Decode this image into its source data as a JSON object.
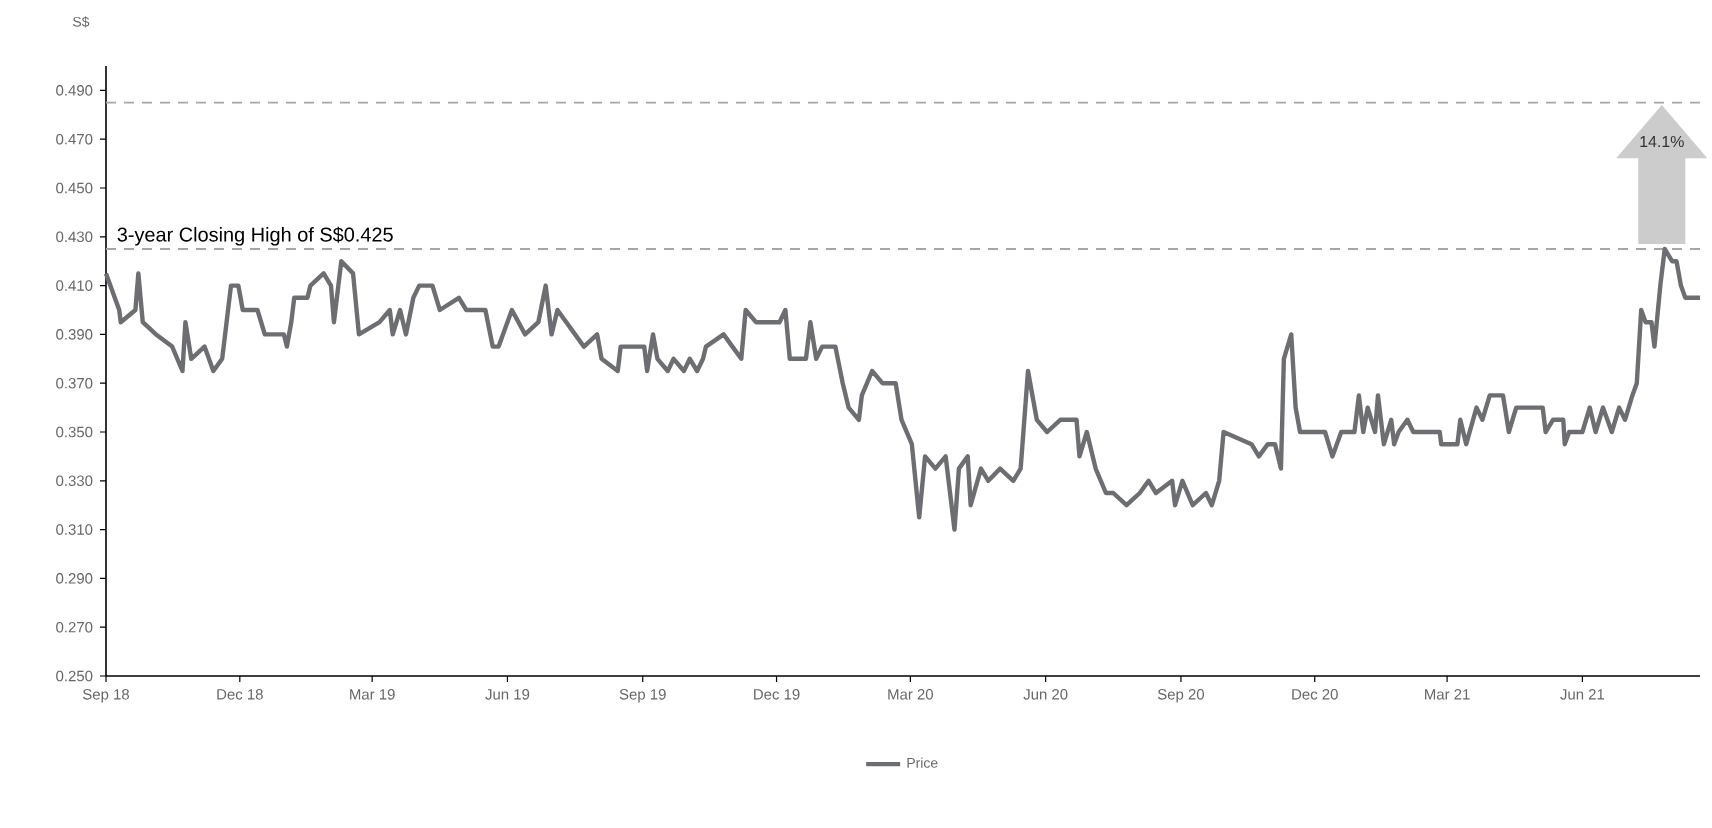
{
  "chart_data": {
    "type": "line",
    "ylabel": "S$",
    "legend": "bottom",
    "line_style": "solid",
    "xlim": [
      "2018-09-01",
      "2021-08-20"
    ],
    "xticks": [
      {
        "value": "2018-09-01",
        "label": "Sep 18"
      },
      {
        "value": "2018-12-01",
        "label": "Dec 18"
      },
      {
        "value": "2019-03-01",
        "label": "Mar 19"
      },
      {
        "value": "2019-06-01",
        "label": "Jun 19"
      },
      {
        "value": "2019-09-01",
        "label": "Sep 19"
      },
      {
        "value": "2019-12-01",
        "label": "Dec 19"
      },
      {
        "value": "2020-03-01",
        "label": "Mar 20"
      },
      {
        "value": "2020-06-01",
        "label": "Jun 20"
      },
      {
        "value": "2020-09-01",
        "label": "Sep 20"
      },
      {
        "value": "2020-12-01",
        "label": "Dec 20"
      },
      {
        "value": "2021-03-01",
        "label": "Mar 21"
      },
      {
        "value": "2021-06-01",
        "label": "Jun 21"
      }
    ],
    "ylim": [
      0.25,
      0.5
    ],
    "yticks": [
      {
        "value": 0.25,
        "label": "0.250"
      },
      {
        "value": 0.27,
        "label": "0.270"
      },
      {
        "value": 0.29,
        "label": "0.290"
      },
      {
        "value": 0.31,
        "label": "0.310"
      },
      {
        "value": 0.33,
        "label": "0.330"
      },
      {
        "value": 0.35,
        "label": "0.350"
      },
      {
        "value": 0.37,
        "label": "0.370"
      },
      {
        "value": 0.39,
        "label": "0.390"
      },
      {
        "value": 0.41,
        "label": "0.410"
      },
      {
        "value": 0.43,
        "label": "0.430"
      },
      {
        "value": 0.45,
        "label": "0.450"
      },
      {
        "value": 0.47,
        "label": "0.470"
      },
      {
        "value": 0.49,
        "label": "0.490"
      }
    ],
    "ref_lines": [
      {
        "axis": "y",
        "value": 0.425,
        "label": "3-year Closing High of S$0.425",
        "color": "#a6a6a6",
        "line_style": "dashed"
      },
      {
        "axis": "y",
        "value": 0.485,
        "color": "#a6a6a6",
        "line_style": "dashed"
      }
    ],
    "annotations": [
      "14.1%"
    ],
    "x": [
      "2018-09-01",
      "2018-09-10",
      "2018-09-11",
      "2018-09-21",
      "2018-09-23",
      "2018-09-26",
      "2018-10-05",
      "2018-10-16",
      "2018-10-23",
      "2018-10-25",
      "2018-10-29",
      "2018-11-07",
      "2018-11-13",
      "2018-11-19",
      "2018-11-21",
      "2018-11-25",
      "2018-11-30",
      "2018-12-03",
      "2018-12-13",
      "2018-12-18",
      "2018-12-31",
      "2019-01-02",
      "2019-01-05",
      "2019-01-07",
      "2019-01-16",
      "2019-01-18",
      "2019-01-27",
      "2019-02-01",
      "2019-02-03",
      "2019-02-08",
      "2019-02-16",
      "2019-02-20",
      "2019-03-06",
      "2019-03-13",
      "2019-03-15",
      "2019-03-20",
      "2019-03-24",
      "2019-03-29",
      "2019-04-02",
      "2019-04-11",
      "2019-04-16",
      "2019-04-29",
      "2019-05-04",
      "2019-05-17",
      "2019-05-22",
      "2019-05-26",
      "2019-06-04",
      "2019-06-13",
      "2019-06-22",
      "2019-06-27",
      "2019-07-01",
      "2019-07-05",
      "2019-07-23",
      "2019-08-01",
      "2019-08-04",
      "2019-08-15",
      "2019-08-17",
      "2019-09-02",
      "2019-09-04",
      "2019-09-08",
      "2019-09-11",
      "2019-09-18",
      "2019-09-22",
      "2019-09-29",
      "2019-10-03",
      "2019-10-08",
      "2019-10-12",
      "2019-10-14",
      "2019-10-26",
      "2019-11-01",
      "2019-11-07",
      "2019-11-10",
      "2019-11-17",
      "2019-12-03",
      "2019-12-07",
      "2019-12-10",
      "2019-12-21",
      "2019-12-24",
      "2019-12-28",
      "2020-01-01",
      "2020-01-10",
      "2020-01-15",
      "2020-01-19",
      "2020-01-26",
      "2020-01-28",
      "2020-02-04",
      "2020-02-11",
      "2020-02-20",
      "2020-02-24",
      "2020-03-02",
      "2020-03-07",
      "2020-03-11",
      "2020-03-18",
      "2020-03-25",
      "2020-03-31",
      "2020-04-03",
      "2020-04-09",
      "2020-04-11",
      "2020-04-18",
      "2020-04-23",
      "2020-05-01",
      "2020-05-10",
      "2020-05-15",
      "2020-05-20",
      "2020-05-26",
      "2020-06-02",
      "2020-06-11",
      "2020-06-22",
      "2020-06-24",
      "2020-06-29",
      "2020-07-05",
      "2020-07-12",
      "2020-07-17",
      "2020-07-26",
      "2020-08-04",
      "2020-08-10",
      "2020-08-15",
      "2020-08-26",
      "2020-08-28",
      "2020-09-02",
      "2020-09-09",
      "2020-09-18",
      "2020-09-22",
      "2020-09-27",
      "2020-09-30",
      "2020-10-19",
      "2020-10-24",
      "2020-10-30",
      "2020-11-04",
      "2020-11-08",
      "2020-11-10",
      "2020-11-15",
      "2020-11-18",
      "2020-11-21",
      "2020-12-08",
      "2020-12-13",
      "2020-12-19",
      "2020-12-28",
      "2020-12-31",
      "2021-01-03",
      "2021-01-06",
      "2021-01-11",
      "2021-01-13",
      "2021-01-17",
      "2021-01-22",
      "2021-01-24",
      "2021-01-27",
      "2021-02-02",
      "2021-02-06",
      "2021-02-24",
      "2021-02-25",
      "2021-03-08",
      "2021-03-10",
      "2021-03-14",
      "2021-03-21",
      "2021-03-25",
      "2021-03-30",
      "2021-04-08",
      "2021-04-12",
      "2021-04-17",
      "2021-05-05",
      "2021-05-07",
      "2021-05-12",
      "2021-05-19",
      "2021-05-20",
      "2021-05-23",
      "2021-06-01",
      "2021-06-06",
      "2021-06-10",
      "2021-06-15",
      "2021-06-21",
      "2021-06-26",
      "2021-06-30",
      "2021-07-05",
      "2021-07-08",
      "2021-07-11",
      "2021-07-14",
      "2021-07-18",
      "2021-07-20",
      "2021-07-24",
      "2021-07-27",
      "2021-08-01",
      "2021-08-04",
      "2021-08-07",
      "2021-08-10",
      "2021-08-20"
    ],
    "series": [
      {
        "name": "Price",
        "color": "#6d6e71",
        "values": [
          0.415,
          0.4,
          0.395,
          0.4,
          0.415,
          0.395,
          0.39,
          0.385,
          0.375,
          0.395,
          0.38,
          0.385,
          0.375,
          0.38,
          0.39,
          0.41,
          0.41,
          0.4,
          0.4,
          0.39,
          0.39,
          0.385,
          0.395,
          0.405,
          0.405,
          0.41,
          0.415,
          0.41,
          0.395,
          0.42,
          0.415,
          0.39,
          0.395,
          0.4,
          0.39,
          0.4,
          0.39,
          0.405,
          0.41,
          0.41,
          0.4,
          0.405,
          0.4,
          0.4,
          0.385,
          0.385,
          0.4,
          0.39,
          0.395,
          0.41,
          0.39,
          0.4,
          0.385,
          0.39,
          0.38,
          0.375,
          0.385,
          0.385,
          0.375,
          0.39,
          0.38,
          0.375,
          0.38,
          0.375,
          0.38,
          0.375,
          0.38,
          0.385,
          0.39,
          0.385,
          0.38,
          0.4,
          0.395,
          0.395,
          0.4,
          0.38,
          0.38,
          0.395,
          0.38,
          0.385,
          0.385,
          0.37,
          0.36,
          0.355,
          0.365,
          0.375,
          0.37,
          0.37,
          0.355,
          0.345,
          0.315,
          0.34,
          0.335,
          0.34,
          0.31,
          0.335,
          0.34,
          0.32,
          0.335,
          0.33,
          0.335,
          0.33,
          0.335,
          0.375,
          0.355,
          0.35,
          0.355,
          0.355,
          0.34,
          0.35,
          0.335,
          0.325,
          0.325,
          0.32,
          0.325,
          0.33,
          0.325,
          0.33,
          0.32,
          0.33,
          0.32,
          0.325,
          0.32,
          0.33,
          0.35,
          0.345,
          0.34,
          0.345,
          0.345,
          0.335,
          0.38,
          0.39,
          0.36,
          0.35,
          0.35,
          0.34,
          0.35,
          0.35,
          0.365,
          0.35,
          0.36,
          0.35,
          0.365,
          0.345,
          0.355,
          0.345,
          0.35,
          0.355,
          0.35,
          0.35,
          0.345,
          0.345,
          0.355,
          0.345,
          0.36,
          0.355,
          0.365,
          0.365,
          0.35,
          0.36,
          0.36,
          0.35,
          0.355,
          0.355,
          0.345,
          0.35,
          0.35,
          0.36,
          0.35,
          0.36,
          0.35,
          0.36,
          0.355,
          0.365,
          0.37,
          0.4,
          0.395,
          0.395,
          0.385,
          0.41,
          0.425,
          0.42,
          0.42,
          0.41,
          0.405,
          0.405
        ]
      }
    ]
  }
}
